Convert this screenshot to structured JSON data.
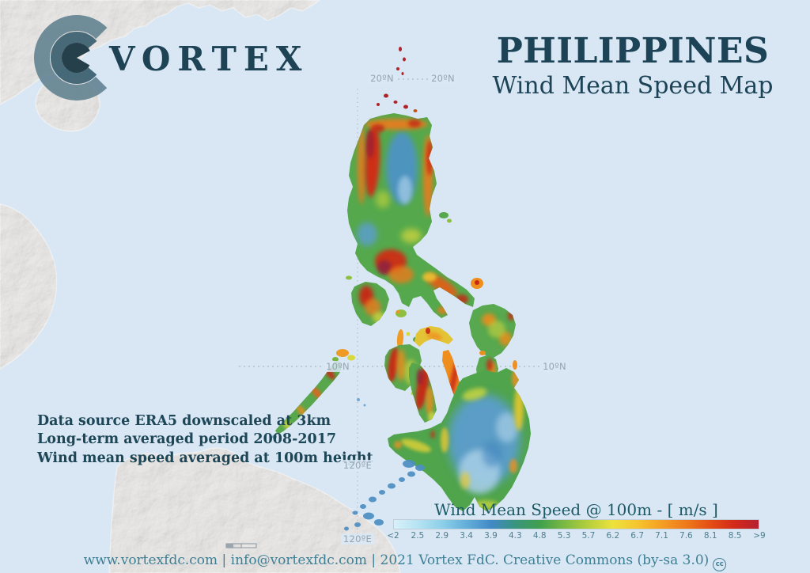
{
  "colors": {
    "sea": "#d9e7f4",
    "title_teal": "#1c4356",
    "footer_teal": "#3d7f95",
    "graticule_gray": "#93a4b1",
    "legend_title_teal": "#1d5a68"
  },
  "logo": {
    "wordmark": "VORTEX"
  },
  "header": {
    "title": "PHILIPPINES",
    "subtitle": "Wind Mean Speed Map"
  },
  "info": {
    "line1": "Data source ERA5 downscaled at 3km",
    "line2": "Long-term averaged period 2008-2017",
    "line3": "Wind mean speed averaged at 100m height"
  },
  "graticule": {
    "lat20": "20ºN",
    "lat10": "10ºN",
    "lon120": "120ºE"
  },
  "legend": {
    "title": "Wind Mean Speed @ 100m - [ m/s ]",
    "ticks": [
      "<2",
      "2.5",
      "2.9",
      "3.4",
      "3.9",
      "4.3",
      "4.8",
      "5.3",
      "5.7",
      "6.2",
      "6.7",
      "7.1",
      "7.6",
      "8.1",
      "8.5",
      ">9"
    ],
    "colors": [
      "#d8f1f9",
      "#b5e3f3",
      "#8ccfe9",
      "#62aed9",
      "#4189c7",
      "#38957d",
      "#3fa04c",
      "#7ab943",
      "#b5cf3c",
      "#ede23e",
      "#f6c42f",
      "#f59f24",
      "#ef7a1c",
      "#e44e15",
      "#d32a18",
      "#b52031"
    ]
  },
  "footer": {
    "text": "www.vortexfdc.com | info@vortexfdc.com | 2021 Vortex FdC.  Creative Commons (by-sa 3.0)",
    "cc_label": "cc"
  }
}
